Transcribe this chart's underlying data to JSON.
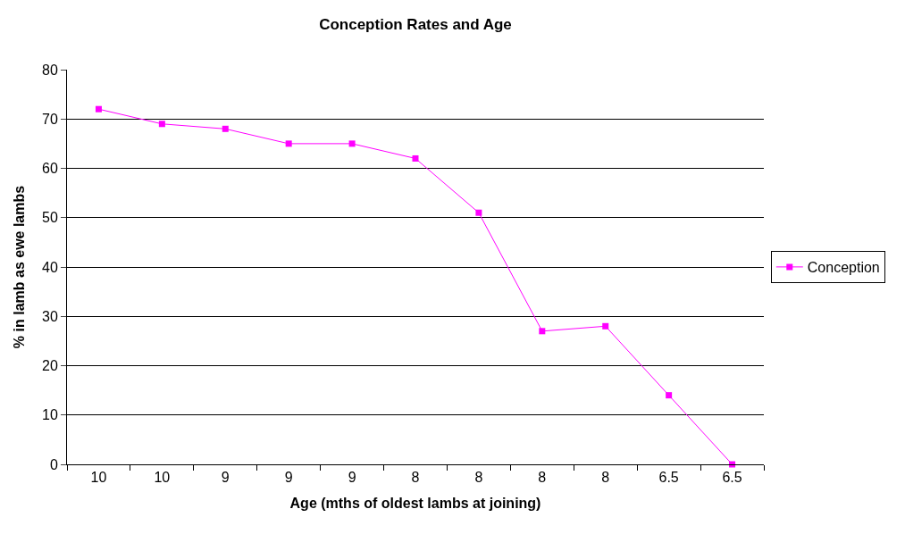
{
  "chart_data": {
    "type": "line",
    "title": "Conception Rates and Age",
    "xlabel": "Age (mths of oldest lambs at joining)",
    "ylabel": "% in lamb as ewe lambs",
    "categories": [
      "10",
      "10",
      "9",
      "9",
      "9",
      "8",
      "8",
      "8",
      "8",
      "6.5",
      "6.5"
    ],
    "series": [
      {
        "name": "Conception",
        "color": "#ff00ff",
        "values": [
          72,
          69,
          68,
          65,
          65,
          62,
          51,
          27,
          28,
          14,
          0
        ]
      }
    ],
    "ylim": [
      0,
      80
    ],
    "yticks": [
      0,
      10,
      20,
      30,
      40,
      50,
      60,
      70,
      80
    ],
    "grid": "y",
    "legend": "right",
    "marker": "square",
    "line_style": "solid"
  }
}
